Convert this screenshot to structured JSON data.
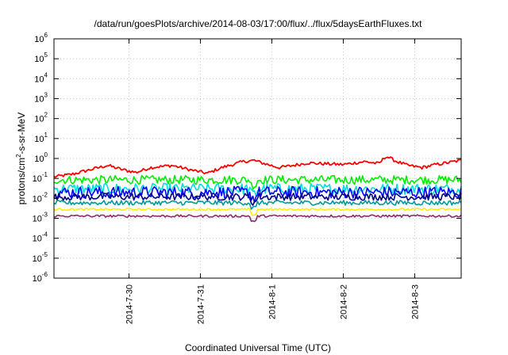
{
  "chart_data": {
    "type": "line",
    "title": "/data/run/goesPlots/archive/2014-08-03/17:00/flux/../flux/5daysEarthFluxes.txt",
    "xlabel": "Coordinated Universal Time (UTC)",
    "ylabel": {
      "prefix": "protons/cm",
      "sup": "2",
      "suffix": "-s-sr-MeV"
    },
    "yscale": "log",
    "ylim_exp": [
      -6,
      6
    ],
    "y_tick_labels": [
      {
        "base": "10",
        "exp": "-6"
      },
      {
        "base": "10",
        "exp": "-5"
      },
      {
        "base": "10",
        "exp": "-4"
      },
      {
        "base": "10",
        "exp": "-3"
      },
      {
        "base": "10",
        "exp": "-2"
      },
      {
        "base": "10",
        "exp": "-1"
      },
      {
        "base": "10",
        "exp": "0"
      },
      {
        "base": "10",
        "exp": "1"
      },
      {
        "base": "10",
        "exp": "2"
      },
      {
        "base": "10",
        "exp": "3"
      },
      {
        "base": "10",
        "exp": "4"
      },
      {
        "base": "10",
        "exp": "5"
      },
      {
        "base": "10",
        "exp": "6"
      }
    ],
    "x_ticks": [
      "2014-7-30",
      "2014-7-31",
      "2014-8-1",
      "2014-8-2",
      "2014-8-3"
    ],
    "x_range_days": [
      -1.05,
      4.65
    ],
    "grid": true,
    "series": [
      {
        "color": "#ff0000",
        "base": 0.25,
        "jitter": 0.08,
        "anchors": [
          [
            -1.05,
            0.12
          ],
          [
            -0.8,
            0.16
          ],
          [
            -0.5,
            0.3
          ],
          [
            -0.3,
            0.45
          ],
          [
            -0.1,
            0.28
          ],
          [
            0.1,
            0.2
          ],
          [
            0.3,
            0.35
          ],
          [
            0.6,
            0.45
          ],
          [
            0.9,
            0.25
          ],
          [
            1.1,
            0.18
          ],
          [
            1.3,
            0.35
          ],
          [
            1.6,
            0.7
          ],
          [
            1.75,
            0.8
          ],
          [
            1.9,
            0.55
          ],
          [
            2.1,
            0.35
          ],
          [
            2.3,
            0.45
          ],
          [
            2.5,
            0.6
          ],
          [
            2.7,
            0.55
          ],
          [
            3.0,
            0.5
          ],
          [
            3.3,
            0.7
          ],
          [
            3.5,
            0.55
          ],
          [
            3.6,
            1.3
          ],
          [
            3.75,
            0.7
          ],
          [
            3.9,
            0.45
          ],
          [
            4.1,
            0.35
          ],
          [
            4.3,
            0.5
          ],
          [
            4.5,
            0.65
          ],
          [
            4.65,
            0.8
          ]
        ]
      },
      {
        "color": "#00ee00",
        "base": 0.085,
        "jitter": 0.22
      },
      {
        "color": "#00dddd",
        "base": 0.03,
        "jitter": 0.28
      },
      {
        "color": "#0000ff",
        "base": 0.02,
        "jitter": 0.3
      },
      {
        "color": "#000088",
        "base": 0.012,
        "jitter": 0.18
      },
      {
        "color": "#009999",
        "base": 0.006,
        "jitter": 0.12
      },
      {
        "color": "#ffee00",
        "base": 0.0028,
        "jitter": 0.05
      },
      {
        "color": "#8b2a6b",
        "base": 0.0013,
        "jitter": 0.06
      }
    ]
  }
}
